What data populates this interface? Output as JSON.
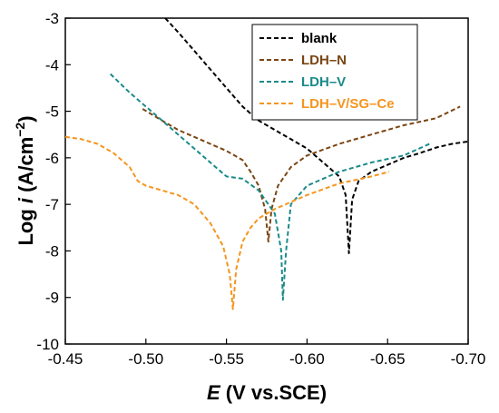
{
  "chart_data": {
    "type": "line",
    "xlabel_symbol": "E",
    "xlabel_rest": " (V vs.SCE)",
    "ylabel_prefix": "Log ",
    "ylabel_symbol": "i",
    "ylabel_units": " (A/cm",
    "ylabel_sup": "−2",
    "ylabel_close": ")",
    "xlim": [
      -0.45,
      -0.7
    ],
    "ylim": [
      -10,
      -3
    ],
    "x_ticks": [
      -0.45,
      -0.5,
      -0.55,
      -0.6,
      -0.65,
      -0.7
    ],
    "x_tick_labels": [
      "-0.45",
      "-0.50",
      "-0.55",
      "-0.60",
      "-0.65",
      "-0.70"
    ],
    "y_ticks": [
      -10,
      -9,
      -8,
      -7,
      -6,
      -5,
      -4,
      -3
    ],
    "y_tick_labels": [
      "-10",
      "-9",
      "-8",
      "-7",
      "-6",
      "-5",
      "-4",
      "-3"
    ],
    "grid": false,
    "line_style": "dashed",
    "legend_position": "top-right",
    "series": [
      {
        "name": "blank",
        "color": "#000000",
        "points": [
          [
            -0.512,
            -3.0
          ],
          [
            -0.52,
            -3.3
          ],
          [
            -0.53,
            -3.7
          ],
          [
            -0.54,
            -4.1
          ],
          [
            -0.55,
            -4.5
          ],
          [
            -0.56,
            -4.9
          ],
          [
            -0.57,
            -5.2
          ],
          [
            -0.58,
            -5.4
          ],
          [
            -0.59,
            -5.6
          ],
          [
            -0.6,
            -5.8
          ],
          [
            -0.61,
            -6.1
          ],
          [
            -0.62,
            -6.4
          ],
          [
            -0.624,
            -6.8
          ],
          [
            -0.626,
            -8.05
          ],
          [
            -0.628,
            -6.9
          ],
          [
            -0.632,
            -6.5
          ],
          [
            -0.64,
            -6.3
          ],
          [
            -0.65,
            -6.15
          ],
          [
            -0.66,
            -6.0
          ],
          [
            -0.67,
            -5.9
          ],
          [
            -0.68,
            -5.78
          ],
          [
            -0.69,
            -5.7
          ],
          [
            -0.7,
            -5.65
          ]
        ]
      },
      {
        "name": "LDH–N",
        "color": "#7a4513",
        "points": [
          [
            -0.498,
            -4.95
          ],
          [
            -0.51,
            -5.2
          ],
          [
            -0.52,
            -5.4
          ],
          [
            -0.53,
            -5.55
          ],
          [
            -0.54,
            -5.7
          ],
          [
            -0.55,
            -5.85
          ],
          [
            -0.56,
            -6.05
          ],
          [
            -0.565,
            -6.3
          ],
          [
            -0.57,
            -6.6
          ],
          [
            -0.574,
            -7.1
          ],
          [
            -0.576,
            -7.8
          ],
          [
            -0.578,
            -7.1
          ],
          [
            -0.582,
            -6.6
          ],
          [
            -0.59,
            -6.2
          ],
          [
            -0.6,
            -5.95
          ],
          [
            -0.62,
            -5.7
          ],
          [
            -0.64,
            -5.5
          ],
          [
            -0.66,
            -5.3
          ],
          [
            -0.68,
            -5.15
          ],
          [
            -0.695,
            -4.9
          ]
        ]
      },
      {
        "name": "LDH–V",
        "color": "#1a8a8a",
        "points": [
          [
            -0.478,
            -4.2
          ],
          [
            -0.49,
            -4.6
          ],
          [
            -0.5,
            -4.9
          ],
          [
            -0.51,
            -5.2
          ],
          [
            -0.52,
            -5.5
          ],
          [
            -0.53,
            -5.8
          ],
          [
            -0.54,
            -6.1
          ],
          [
            -0.55,
            -6.4
          ],
          [
            -0.56,
            -6.45
          ],
          [
            -0.57,
            -6.7
          ],
          [
            -0.58,
            -7.2
          ],
          [
            -0.584,
            -8.0
          ],
          [
            -0.585,
            -9.05
          ],
          [
            -0.587,
            -8.0
          ],
          [
            -0.59,
            -7.0
          ],
          [
            -0.6,
            -6.6
          ],
          [
            -0.62,
            -6.3
          ],
          [
            -0.64,
            -6.1
          ],
          [
            -0.66,
            -5.95
          ],
          [
            -0.676,
            -5.7
          ]
        ]
      },
      {
        "name": "LDH–V/SG–Ce",
        "color": "#f5951e",
        "points": [
          [
            -0.45,
            -5.55
          ],
          [
            -0.46,
            -5.6
          ],
          [
            -0.47,
            -5.7
          ],
          [
            -0.48,
            -5.9
          ],
          [
            -0.49,
            -6.2
          ],
          [
            -0.495,
            -6.5
          ],
          [
            -0.5,
            -6.6
          ],
          [
            -0.51,
            -6.7
          ],
          [
            -0.52,
            -6.8
          ],
          [
            -0.53,
            -7.0
          ],
          [
            -0.54,
            -7.4
          ],
          [
            -0.548,
            -7.9
          ],
          [
            -0.552,
            -8.5
          ],
          [
            -0.554,
            -9.25
          ],
          [
            -0.556,
            -8.4
          ],
          [
            -0.56,
            -7.8
          ],
          [
            -0.565,
            -7.5
          ],
          [
            -0.57,
            -7.3
          ],
          [
            -0.58,
            -7.1
          ],
          [
            -0.59,
            -6.95
          ],
          [
            -0.6,
            -6.8
          ],
          [
            -0.62,
            -6.55
          ],
          [
            -0.64,
            -6.4
          ],
          [
            -0.651,
            -6.3
          ]
        ]
      }
    ]
  }
}
